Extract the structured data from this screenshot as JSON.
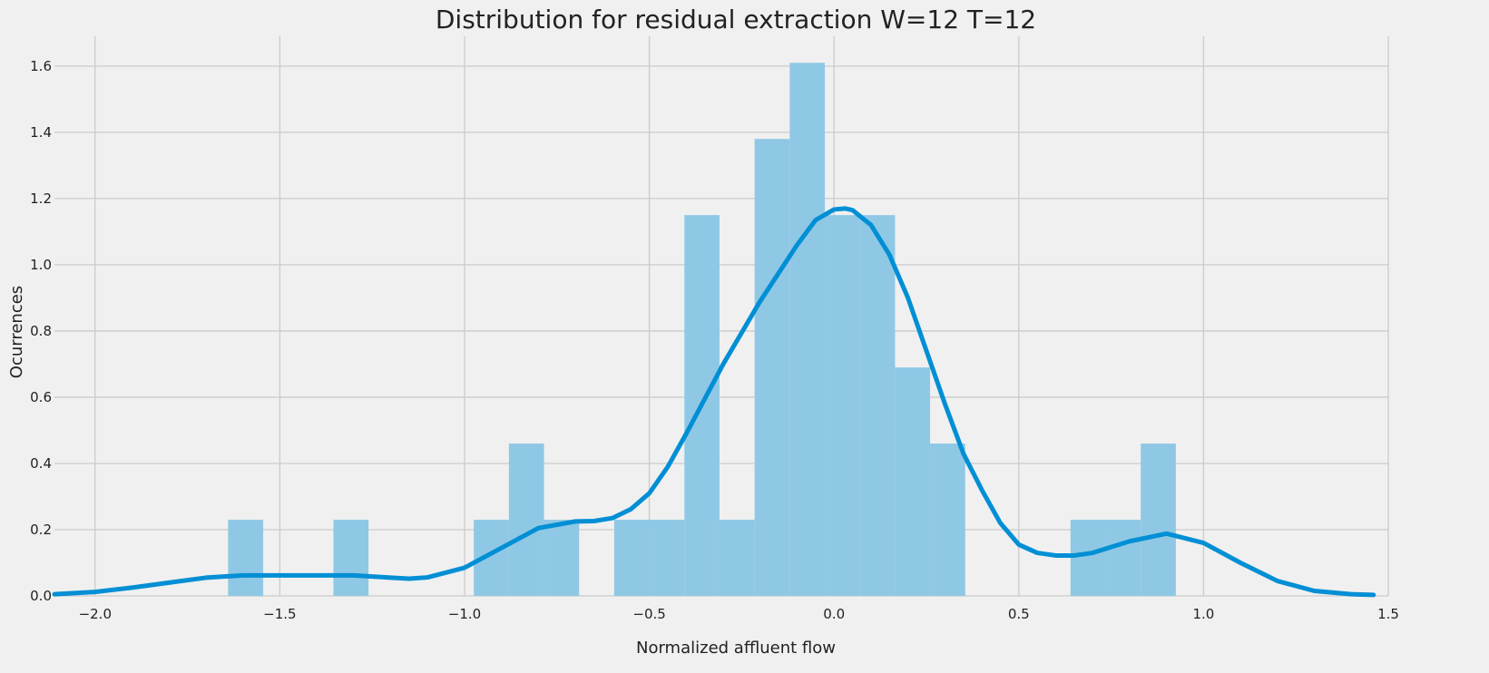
{
  "chart_data": {
    "type": "bar",
    "title": "Distribution for residual extraction W=12 T=12",
    "xlabel": "Normalized affluent flow",
    "ylabel": "Ocurrences",
    "xlim": [
      -2.11,
      1.5
    ],
    "ylim": [
      0,
      1.69
    ],
    "xticks": [
      -2.0,
      -1.5,
      -1.0,
      -0.5,
      0.0,
      0.5,
      1.0,
      1.5
    ],
    "xtick_labels": [
      "−2.0",
      "−1.5",
      "−1.0",
      "−0.5",
      "0.0",
      "0.5",
      "1.0",
      "1.5"
    ],
    "yticks": [
      0.0,
      0.2,
      0.4,
      0.6,
      0.8,
      1.0,
      1.2,
      1.4,
      1.6
    ],
    "ytick_labels": [
      "0.0",
      "0.2",
      "0.4",
      "0.6",
      "0.8",
      "1.0",
      "1.2",
      "1.4",
      "1.6"
    ],
    "grid": true,
    "colors": {
      "background": "#f0f0f0",
      "grid": "#cbcbcb",
      "bar": "#8fc8e5",
      "line": "#008fd5",
      "text": "#222222"
    },
    "histogram": {
      "bin_edges": [
        -1.64,
        -1.545,
        -1.45,
        -1.355,
        -1.26,
        -1.165,
        -1.07,
        -0.975,
        -0.88,
        -0.785,
        -0.69,
        -0.595,
        -0.5,
        -0.405,
        -0.31,
        -0.215,
        -0.12,
        -0.025,
        0.07,
        0.165,
        0.26,
        0.355,
        0.45,
        0.545,
        0.64,
        0.735,
        0.83,
        0.925,
        1.02
      ],
      "values": [
        0.23,
        0,
        0,
        0.23,
        0,
        0,
        0,
        0.23,
        0.46,
        0.23,
        0,
        0.23,
        0.23,
        1.15,
        0.23,
        1.38,
        1.61,
        1.15,
        1.15,
        0.69,
        0.46,
        0,
        0,
        0,
        0.23,
        0.23,
        0.46,
        0
      ]
    },
    "kde": {
      "x": [
        -2.11,
        -2.0,
        -1.9,
        -1.8,
        -1.7,
        -1.6,
        -1.5,
        -1.4,
        -1.3,
        -1.2,
        -1.15,
        -1.1,
        -1.0,
        -0.9,
        -0.8,
        -0.7,
        -0.65,
        -0.6,
        -0.55,
        -0.5,
        -0.45,
        -0.4,
        -0.3,
        -0.2,
        -0.1,
        -0.05,
        0.0,
        0.03,
        0.05,
        0.1,
        0.15,
        0.2,
        0.25,
        0.3,
        0.35,
        0.4,
        0.45,
        0.5,
        0.55,
        0.6,
        0.65,
        0.7,
        0.8,
        0.9,
        1.0,
        1.1,
        1.2,
        1.3,
        1.4,
        1.46
      ],
      "y": [
        0.005,
        0.012,
        0.025,
        0.04,
        0.055,
        0.062,
        0.062,
        0.062,
        0.062,
        0.055,
        0.052,
        0.056,
        0.085,
        0.145,
        0.205,
        0.225,
        0.226,
        0.235,
        0.262,
        0.31,
        0.39,
        0.49,
        0.7,
        0.89,
        1.06,
        1.135,
        1.167,
        1.17,
        1.165,
        1.12,
        1.03,
        0.9,
        0.74,
        0.58,
        0.43,
        0.32,
        0.22,
        0.155,
        0.13,
        0.122,
        0.122,
        0.13,
        0.165,
        0.188,
        0.16,
        0.1,
        0.045,
        0.015,
        0.005,
        0.003
      ]
    }
  }
}
